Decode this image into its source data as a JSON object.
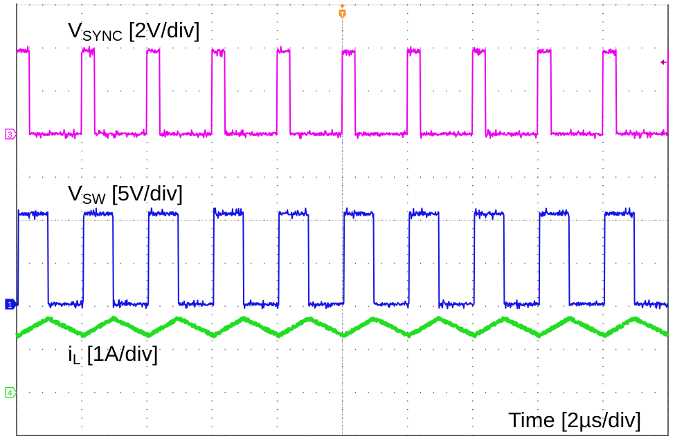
{
  "chart_data": {
    "type": "line",
    "title": "",
    "grid": true,
    "divisions": {
      "horizontal": 10,
      "vertical": 10
    },
    "time_label": "Time [2µs/div]",
    "time_per_div_us": 2,
    "xlim_us": [
      -10,
      10
    ],
    "trigger": {
      "label": "T",
      "time_us": 0,
      "color": "#f7941d"
    },
    "series": [
      {
        "name": "VSYNC",
        "label_main": "V",
        "label_sub": "SYNC",
        "label_scale": " [2V/div]",
        "channel": "3",
        "color": "#ee00ee",
        "volts_per_div": 2,
        "waveform": "pulse",
        "period_us": 2.0,
        "first_rise_us": 0.0,
        "high_width_us": 0.4,
        "low_level": 0,
        "high_level": 3.85
      },
      {
        "name": "VSW",
        "label_main": "V",
        "label_sub": "SW",
        "label_scale": " [5V/div]",
        "channel": "1",
        "color": "#1414e6",
        "volts_per_div": 5,
        "waveform": "pulse",
        "period_us": 2.0,
        "first_rise_us": 0.05,
        "high_width_us": 0.92,
        "low_level": 0,
        "high_level": 10.5
      },
      {
        "name": "iL",
        "label_main": "i",
        "label_sub": "L",
        "label_scale": " [1A/div]",
        "channel": "4",
        "color": "#22dd22",
        "amps_per_div": 1,
        "waveform": "triangle",
        "period_us": 2.0,
        "valley_us": 0.05,
        "peak_us": 0.97,
        "min_level": 1.32,
        "max_level": 1.72
      }
    ]
  }
}
